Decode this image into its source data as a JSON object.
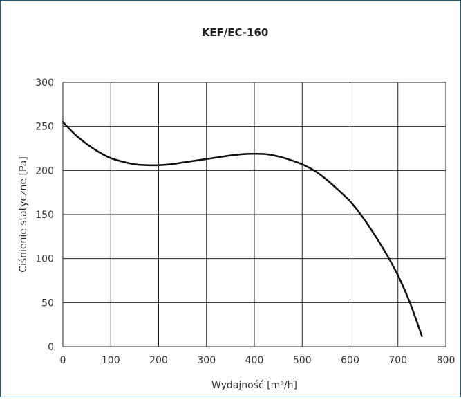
{
  "chart_data": {
    "type": "line",
    "title": "KEF/EC-160",
    "xlabel": "Wydajność [m³/h]",
    "ylabel": "Ciśnienie statyczne [Pa]",
    "xlim": [
      0,
      800
    ],
    "ylim": [
      0,
      300
    ],
    "x_ticks": [
      "0",
      "100",
      "200",
      "300",
      "400",
      "500",
      "600",
      "700",
      "800"
    ],
    "y_ticks": [
      "0",
      "50",
      "100",
      "150",
      "200",
      "250",
      "300"
    ],
    "grid": true,
    "series": [
      {
        "x": [
          0,
          25,
          50,
          75,
          100,
          125,
          150,
          175,
          200,
          225,
          250,
          275,
          300,
          325,
          350,
          375,
          400,
          425,
          450,
          475,
          500,
          525,
          550,
          575,
          600,
          625,
          650,
          675,
          700,
          725,
          750
        ],
        "y": [
          255,
          241,
          230,
          221,
          214,
          210,
          207,
          206,
          206,
          207,
          209,
          211,
          213,
          215,
          217,
          218.5,
          219,
          218.5,
          216,
          212,
          207,
          200,
          190,
          178,
          165,
          148,
          128,
          106,
          81,
          50,
          12
        ]
      }
    ],
    "colors": {
      "line": "#111111",
      "grid": "#222222",
      "frame": "#1f5f7f"
    }
  }
}
